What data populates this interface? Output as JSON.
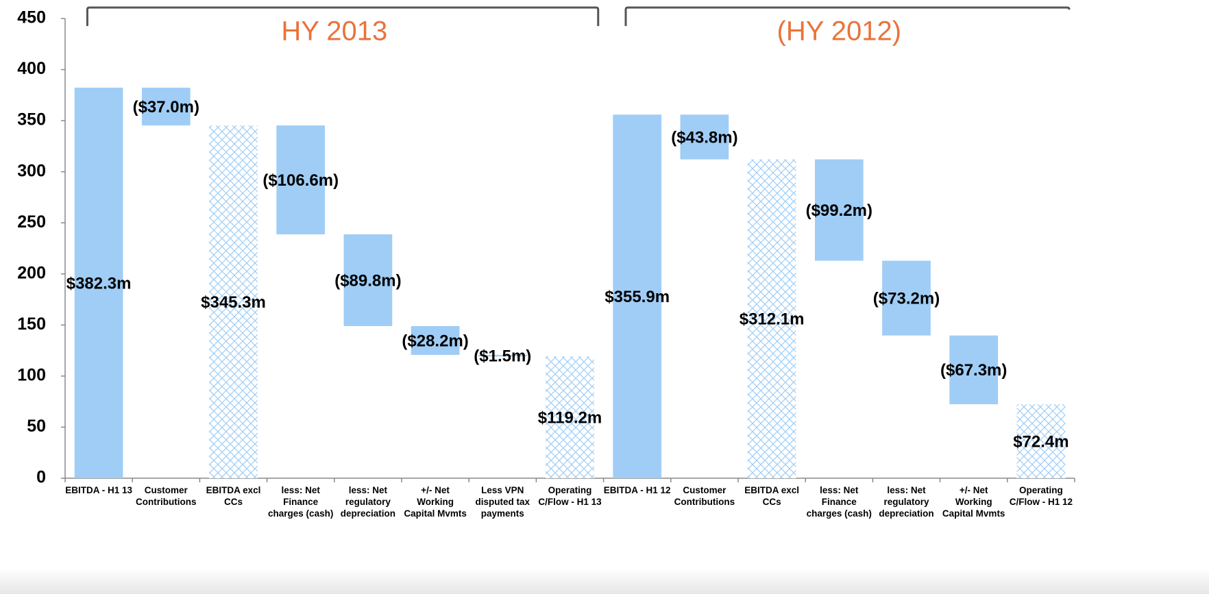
{
  "chart_data": {
    "type": "waterfall",
    "categories": [
      "EBITDA - H1 13",
      "Customer Contributions",
      "EBITDA excl CCs",
      "less: Net Finance charges (cash)",
      "less: Net regulatory depreciation",
      "+/- Net Working Capital Mvmts",
      "Less VPN disputed tax payments",
      "Operating C/Flow - H1 13",
      "EBITDA - H1 12",
      "Customer Contributions",
      "EBITDA excl CCs",
      "less: Net Finance charges (cash)",
      "less: Net regulatory depreciation",
      "+/- Net Working Capital Mvmts",
      "Operating C/Flow - H1 12"
    ],
    "values": [
      382.3,
      -37.0,
      345.3,
      -106.6,
      -89.8,
      -28.2,
      -1.5,
      119.2,
      355.9,
      -43.8,
      312.1,
      -99.2,
      -73.2,
      -67.3,
      72.4
    ],
    "value_labels": [
      "$382.3m",
      "($37.0m)",
      "$345.3m",
      "($106.6m)",
      "($89.8m)",
      "($28.2m)",
      "($1.5m)",
      "$119.2m",
      "$355.9m",
      "($43.8m)",
      "$312.1m",
      "($99.2m)",
      "($73.2m)",
      "($67.3m)",
      "$72.4m"
    ],
    "bar_styles": [
      "total",
      "change",
      "subtotal",
      "change",
      "change",
      "change",
      "change",
      "subtotal",
      "total",
      "change",
      "subtotal",
      "change",
      "change",
      "change",
      "subtotal"
    ],
    "groups": [
      {
        "label": "HY 2013",
        "first": 0,
        "last": 7
      },
      {
        "label": "(HY 2012)",
        "first": 8,
        "last": 14
      }
    ],
    "color": "#9fcdf6",
    "group_label_color": "#e9733a",
    "ylim": [
      0,
      450
    ],
    "yticks": [
      0,
      50,
      100,
      150,
      200,
      250,
      300,
      350,
      400,
      450
    ],
    "grid": false
  }
}
